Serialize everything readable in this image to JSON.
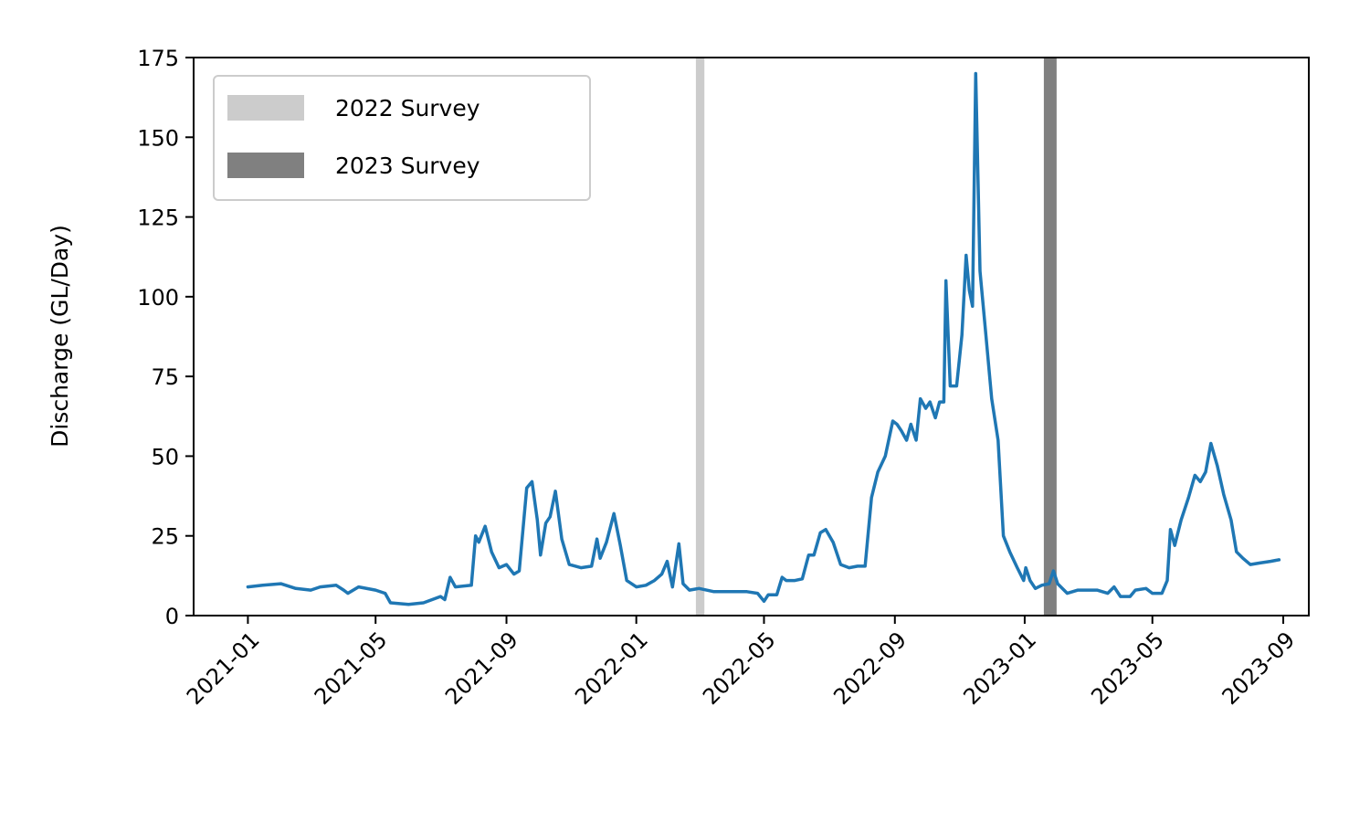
{
  "chart_data": {
    "type": "line",
    "title": "",
    "xlabel": "",
    "ylabel": "Discharge (GL/Day)",
    "xlim": [
      "2020-11-11",
      "2023-09-25"
    ],
    "ylim": [
      0,
      175
    ],
    "x_ticks": [
      "2021-01",
      "2021-05",
      "2021-09",
      "2022-01",
      "2022-05",
      "2022-09",
      "2023-01",
      "2023-05",
      "2023-09"
    ],
    "y_ticks": [
      0,
      25,
      50,
      75,
      100,
      125,
      150,
      175
    ],
    "grid": false,
    "legend_position": "top-left",
    "legend": [
      {
        "label": "2022 Survey",
        "color": "#cccccc"
      },
      {
        "label": "2023 Survey",
        "color": "#808080"
      }
    ],
    "survey_spans": [
      {
        "label": "2022 Survey",
        "start": "2022-02-26",
        "end": "2022-03-06",
        "color": "#cccccc"
      },
      {
        "label": "2023 Survey",
        "start": "2023-01-19",
        "end": "2023-01-31",
        "color": "#808080"
      }
    ],
    "series": [
      {
        "color": "#1f77b4",
        "points": [
          [
            "2021-01-01",
            9
          ],
          [
            "2021-01-15",
            9.5
          ],
          [
            "2021-02-01",
            10
          ],
          [
            "2021-02-15",
            8.5
          ],
          [
            "2021-03-01",
            8
          ],
          [
            "2021-03-10",
            9
          ],
          [
            "2021-03-25",
            9.5
          ],
          [
            "2021-04-01",
            8
          ],
          [
            "2021-04-05",
            7
          ],
          [
            "2021-04-15",
            9
          ],
          [
            "2021-05-01",
            8
          ],
          [
            "2021-05-10",
            7
          ],
          [
            "2021-05-15",
            4
          ],
          [
            "2021-06-01",
            3.5
          ],
          [
            "2021-06-15",
            4
          ],
          [
            "2021-07-01",
            6
          ],
          [
            "2021-07-05",
            5
          ],
          [
            "2021-07-10",
            12
          ],
          [
            "2021-07-15",
            9
          ],
          [
            "2021-07-30",
            9.5
          ],
          [
            "2021-08-03",
            25
          ],
          [
            "2021-08-06",
            23
          ],
          [
            "2021-08-12",
            28
          ],
          [
            "2021-08-18",
            20
          ],
          [
            "2021-08-25",
            15
          ],
          [
            "2021-09-01",
            16
          ],
          [
            "2021-09-08",
            13
          ],
          [
            "2021-09-13",
            14
          ],
          [
            "2021-09-20",
            40
          ],
          [
            "2021-09-25",
            42
          ],
          [
            "2021-09-30",
            30
          ],
          [
            "2021-10-03",
            19
          ],
          [
            "2021-10-08",
            29
          ],
          [
            "2021-10-12",
            31
          ],
          [
            "2021-10-17",
            39
          ],
          [
            "2021-10-23",
            24
          ],
          [
            "2021-10-30",
            16
          ],
          [
            "2021-11-10",
            15
          ],
          [
            "2021-11-20",
            15.5
          ],
          [
            "2021-11-25",
            24
          ],
          [
            "2021-11-28",
            18
          ],
          [
            "2021-12-04",
            23
          ],
          [
            "2021-12-11",
            32
          ],
          [
            "2021-12-17",
            22
          ],
          [
            "2021-12-23",
            11
          ],
          [
            "2022-01-01",
            9
          ],
          [
            "2022-01-10",
            9.5
          ],
          [
            "2022-01-18",
            11
          ],
          [
            "2022-01-25",
            13
          ],
          [
            "2022-01-30",
            17
          ],
          [
            "2022-02-04",
            9
          ],
          [
            "2022-02-10",
            22.5
          ],
          [
            "2022-02-14",
            10
          ],
          [
            "2022-02-20",
            8
          ],
          [
            "2022-03-01",
            8.5
          ],
          [
            "2022-03-15",
            7.5
          ],
          [
            "2022-04-01",
            7.5
          ],
          [
            "2022-04-15",
            7.5
          ],
          [
            "2022-04-25",
            7
          ],
          [
            "2022-05-01",
            4.5
          ],
          [
            "2022-05-05",
            6.5
          ],
          [
            "2022-05-13",
            6.5
          ],
          [
            "2022-05-18",
            12
          ],
          [
            "2022-05-22",
            11
          ],
          [
            "2022-05-30",
            11
          ],
          [
            "2022-06-06",
            11.5
          ],
          [
            "2022-06-12",
            19
          ],
          [
            "2022-06-17",
            19
          ],
          [
            "2022-06-23",
            26
          ],
          [
            "2022-06-28",
            27
          ],
          [
            "2022-07-05",
            23
          ],
          [
            "2022-07-12",
            16
          ],
          [
            "2022-07-20",
            15
          ],
          [
            "2022-07-28",
            15.5
          ],
          [
            "2022-08-04",
            15.5
          ],
          [
            "2022-08-10",
            37
          ],
          [
            "2022-08-16",
            45
          ],
          [
            "2022-08-23",
            50
          ],
          [
            "2022-08-30",
            61
          ],
          [
            "2022-09-03",
            60
          ],
          [
            "2022-09-07",
            58
          ],
          [
            "2022-09-12",
            55
          ],
          [
            "2022-09-16",
            60
          ],
          [
            "2022-09-21",
            55
          ],
          [
            "2022-09-25",
            68
          ],
          [
            "2022-09-30",
            65
          ],
          [
            "2022-10-04",
            67
          ],
          [
            "2022-10-09",
            62
          ],
          [
            "2022-10-13",
            67
          ],
          [
            "2022-10-17",
            67
          ],
          [
            "2022-10-19",
            105
          ],
          [
            "2022-10-23",
            72
          ],
          [
            "2022-10-29",
            72
          ],
          [
            "2022-11-03",
            88
          ],
          [
            "2022-11-07",
            113
          ],
          [
            "2022-11-10",
            102
          ],
          [
            "2022-11-13",
            97
          ],
          [
            "2022-11-16",
            170
          ],
          [
            "2022-11-20",
            108
          ],
          [
            "2022-11-25",
            90
          ],
          [
            "2022-12-01",
            68
          ],
          [
            "2022-12-07",
            55
          ],
          [
            "2022-12-12",
            25
          ],
          [
            "2022-12-18",
            20
          ],
          [
            "2022-12-25",
            15
          ],
          [
            "2022-12-31",
            11
          ],
          [
            "2023-01-02",
            15
          ],
          [
            "2023-01-06",
            11
          ],
          [
            "2023-01-11",
            8.5
          ],
          [
            "2023-01-17",
            9.5
          ],
          [
            "2023-01-24",
            10
          ],
          [
            "2023-01-28",
            14
          ],
          [
            "2023-02-01",
            10
          ],
          [
            "2023-02-10",
            7
          ],
          [
            "2023-02-20",
            8
          ],
          [
            "2023-03-01",
            8
          ],
          [
            "2023-03-10",
            8
          ],
          [
            "2023-03-20",
            7
          ],
          [
            "2023-03-26",
            9
          ],
          [
            "2023-04-01",
            6
          ],
          [
            "2023-04-10",
            6
          ],
          [
            "2023-04-15",
            8
          ],
          [
            "2023-04-25",
            8.5
          ],
          [
            "2023-05-01",
            7
          ],
          [
            "2023-05-10",
            7
          ],
          [
            "2023-05-15",
            11
          ],
          [
            "2023-05-18",
            27
          ],
          [
            "2023-05-22",
            22
          ],
          [
            "2023-05-28",
            30
          ],
          [
            "2023-06-04",
            37
          ],
          [
            "2023-06-10",
            44
          ],
          [
            "2023-06-15",
            42
          ],
          [
            "2023-06-20",
            45
          ],
          [
            "2023-06-25",
            54
          ],
          [
            "2023-07-01",
            47
          ],
          [
            "2023-07-07",
            38
          ],
          [
            "2023-07-14",
            30
          ],
          [
            "2023-07-19",
            20
          ],
          [
            "2023-07-25",
            18
          ],
          [
            "2023-08-01",
            16
          ],
          [
            "2023-08-10",
            16.5
          ],
          [
            "2023-08-20",
            17
          ],
          [
            "2023-08-28",
            17.5
          ]
        ]
      }
    ]
  }
}
